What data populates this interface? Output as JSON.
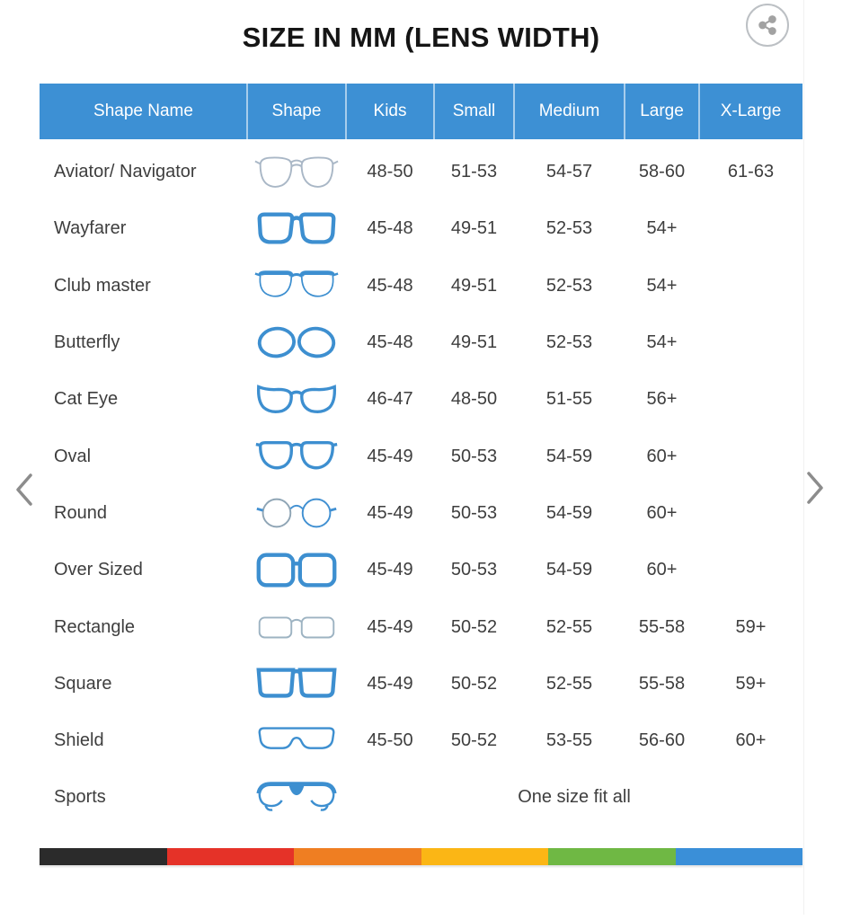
{
  "title": "SIZE IN MM (LENS WIDTH)",
  "share_button": {
    "icon": "share-icon",
    "border_color": "#bcc0c4",
    "glyph_color": "#a2a2a2"
  },
  "carousel": {
    "prev_icon": "chevron-left-icon",
    "next_icon": "chevron-right-icon",
    "chevron_color": "#8c8c8c"
  },
  "chart_data": {
    "type": "table",
    "title": "SIZE IN MM (LENS WIDTH)",
    "header": {
      "bg": "#3d90d4",
      "text_color": "#ffffff",
      "columns": [
        "Shape Name",
        "Shape",
        "Kids",
        "Small",
        "Medium",
        "Large",
        "X-Large"
      ]
    },
    "rows": [
      {
        "name": "Aviator/ Navigator",
        "icon": "aviator-glasses-icon",
        "values": [
          "48-50",
          "51-53",
          "54-57",
          "58-60",
          "61-63"
        ]
      },
      {
        "name": "Wayfarer",
        "icon": "wayfarer-glasses-icon",
        "values": [
          "45-48",
          "49-51",
          "52-53",
          "54+",
          ""
        ]
      },
      {
        "name": "Club master",
        "icon": "clubmaster-glasses-icon",
        "values": [
          "45-48",
          "49-51",
          "52-53",
          "54+",
          ""
        ]
      },
      {
        "name": "Butterfly",
        "icon": "butterfly-glasses-icon",
        "values": [
          "45-48",
          "49-51",
          "52-53",
          "54+",
          ""
        ]
      },
      {
        "name": "Cat Eye",
        "icon": "cateye-glasses-icon",
        "values": [
          "46-47",
          "48-50",
          "51-55",
          "56+",
          ""
        ]
      },
      {
        "name": "Oval",
        "icon": "oval-glasses-icon",
        "values": [
          "45-49",
          "50-53",
          "54-59",
          "60+",
          ""
        ]
      },
      {
        "name": "Round",
        "icon": "round-glasses-icon",
        "values": [
          "45-49",
          "50-53",
          "54-59",
          "60+",
          ""
        ]
      },
      {
        "name": "Over Sized",
        "icon": "oversized-glasses-icon",
        "values": [
          "45-49",
          "50-53",
          "54-59",
          "60+",
          ""
        ]
      },
      {
        "name": "Rectangle",
        "icon": "rectangle-glasses-icon",
        "values": [
          "45-49",
          "50-52",
          "52-55",
          "55-58",
          "59+"
        ]
      },
      {
        "name": "Square",
        "icon": "square-glasses-icon",
        "values": [
          "45-49",
          "50-52",
          "52-55",
          "55-58",
          "59+"
        ]
      },
      {
        "name": "Shield",
        "icon": "shield-glasses-icon",
        "values": [
          "45-50",
          "50-52",
          "53-55",
          "56-60",
          "60+"
        ]
      },
      {
        "name": "Sports",
        "icon": "sports-glasses-icon",
        "span_text": "One size fit all"
      }
    ]
  },
  "footer_stripe": {
    "colors": [
      "#2b2b2b",
      "#e53228",
      "#ef7e22",
      "#fbb615",
      "#6fb844",
      "#3a8fd8"
    ]
  },
  "accent_blue": "#3d90d4"
}
